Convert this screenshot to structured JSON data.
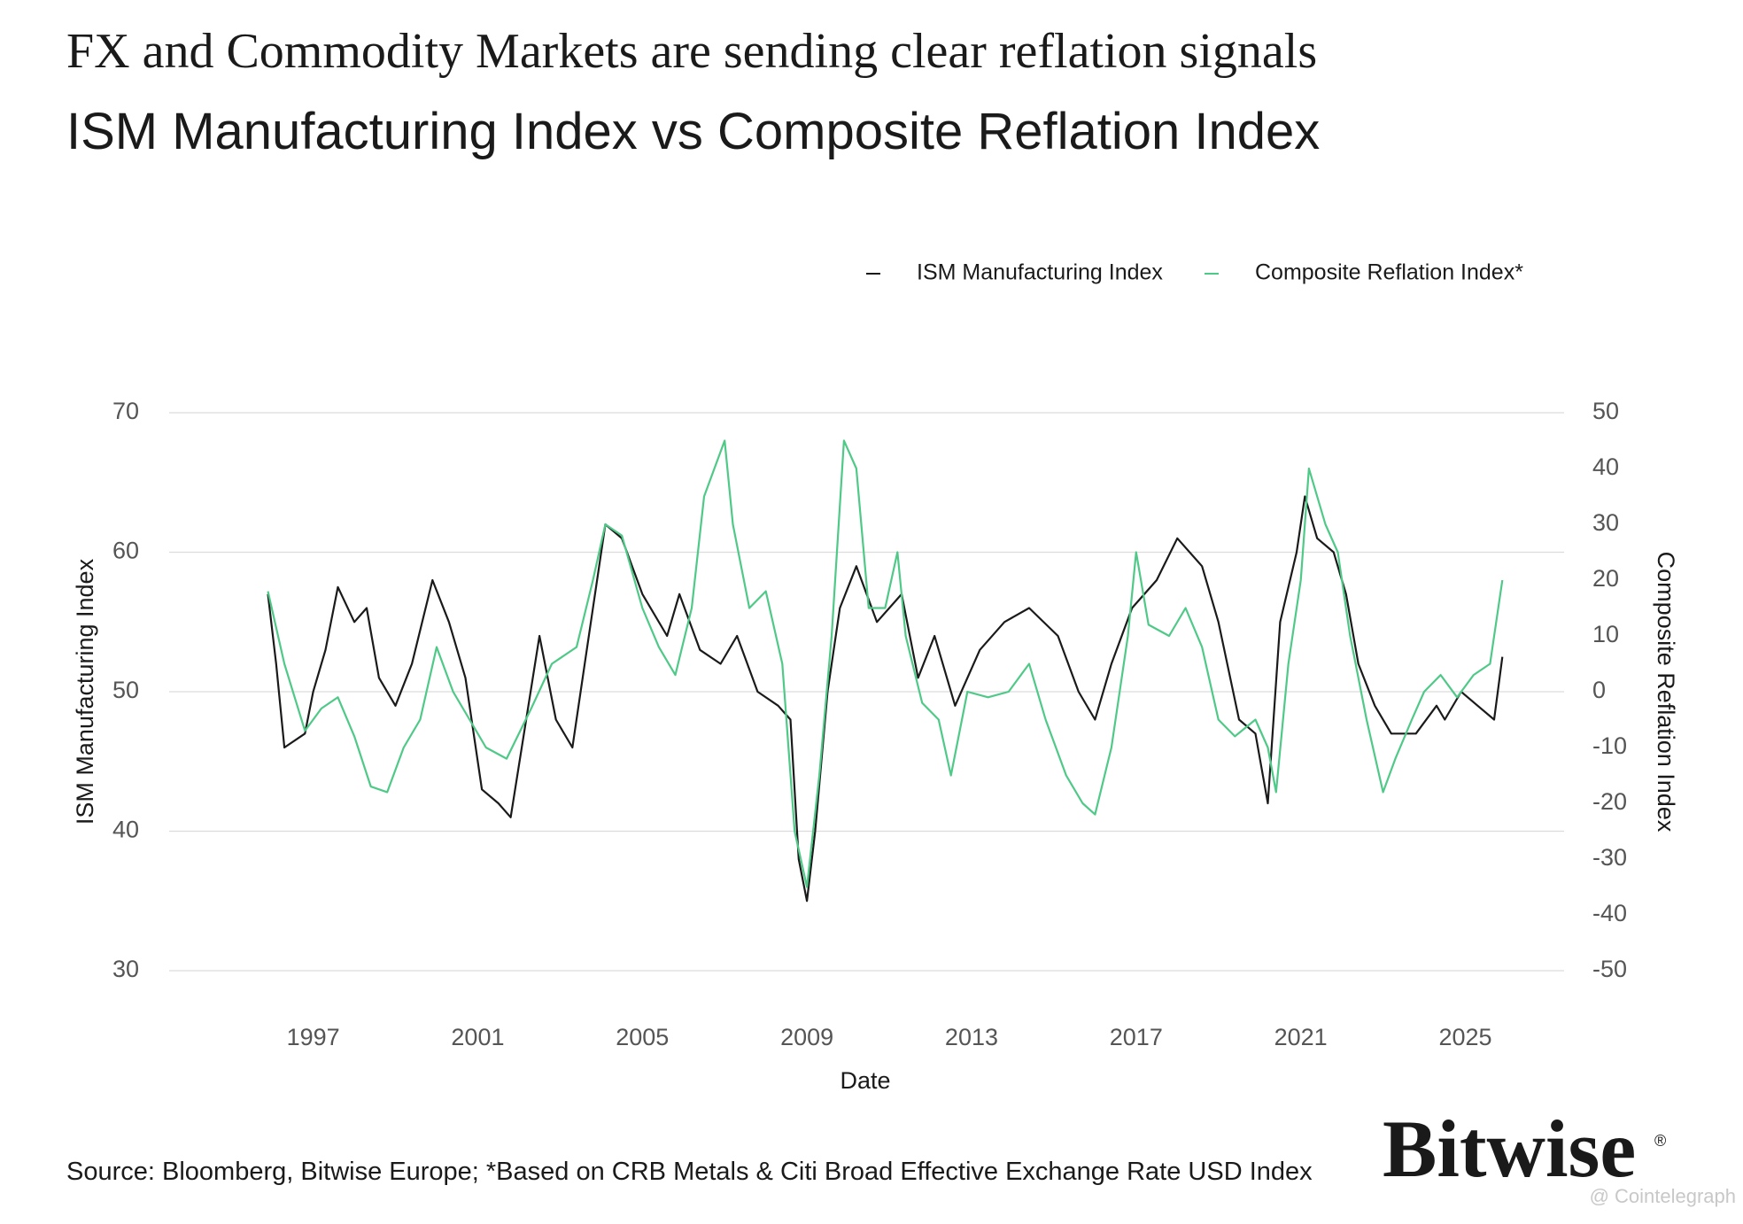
{
  "chart_data": {
    "type": "line",
    "title": "FX and Commodity Markets are sending clear reflation signals",
    "subtitle": "ISM Manufacturing Index vs Composite Reflation Index",
    "x_label": "Date",
    "y_label": "ISM Manufacturing Index",
    "y2_label": "Composite Reflation Index",
    "source": "Source: Bloomberg, Bitwise Europe; *Based on CRB Metals & Citi Broad Effective Exchange Rate USD Index",
    "logo": "Bitwise",
    "logo_mark": "®",
    "watermark": "@ Cointelegraph",
    "xlim": [
      1993.5,
      2027.4
    ],
    "xticks": [
      1997,
      2001,
      2005,
      2009,
      2013,
      2017,
      2021,
      2025
    ],
    "ylim": [
      30,
      70
    ],
    "yticks": [
      30,
      40,
      50,
      60,
      70
    ],
    "y2lim": [
      -50,
      50
    ],
    "y2ticks": [
      -50,
      -40,
      -30,
      -20,
      -10,
      0,
      10,
      20,
      30,
      40,
      50
    ],
    "grid": true,
    "legend": "top-right",
    "series": [
      {
        "name": "ISM Manufacturing Index",
        "color": "#1a1a1a",
        "x": [
          1995.9,
          1996.1,
          1996.3,
          1996.8,
          1997.0,
          1997.3,
          1997.6,
          1998.0,
          1998.3,
          1998.6,
          1999.0,
          1999.4,
          1999.9,
          2000.3,
          2000.7,
          2001.1,
          2001.5,
          2001.8,
          2002.5,
          2002.9,
          2003.3,
          2003.6,
          2003.8,
          2004.1,
          2004.5,
          2005.0,
          2005.6,
          2005.9,
          2006.4,
          2006.9,
          2007.3,
          2007.8,
          2008.3,
          2008.6,
          2008.8,
          2009.0,
          2009.2,
          2009.5,
          2009.8,
          2010.2,
          2010.7,
          2011.3,
          2011.7,
          2012.1,
          2012.6,
          2013.2,
          2013.8,
          2014.4,
          2015.1,
          2015.6,
          2016.0,
          2016.4,
          2016.9,
          2017.5,
          2018.0,
          2018.6,
          2019.0,
          2019.5,
          2019.9,
          2020.2,
          2020.5,
          2020.9,
          2021.1,
          2021.4,
          2021.8,
          2022.1,
          2022.4,
          2022.8,
          2023.2,
          2023.8,
          2024.3,
          2024.5,
          2024.9,
          2025.3,
          2025.7,
          2025.9
        ],
        "values": [
          57,
          52,
          46,
          47,
          50,
          53,
          57.5,
          55,
          56,
          51,
          49,
          52,
          58,
          55,
          51,
          43,
          42,
          41,
          54,
          48,
          46,
          52,
          56,
          62,
          61,
          57,
          54,
          57,
          53,
          52,
          54,
          50,
          49,
          48,
          38,
          35,
          40,
          50,
          56,
          59,
          55,
          57,
          51,
          54,
          49,
          53,
          55,
          56,
          54,
          50,
          48,
          52,
          56,
          58,
          61,
          59,
          55,
          48,
          47,
          42,
          55,
          60,
          64,
          61,
          60,
          57,
          52,
          49,
          47,
          47,
          49,
          48,
          50,
          49,
          48,
          52.5
        ]
      },
      {
        "name": "Composite Reflation Index*",
        "color": "#4fc987",
        "axis": "y2",
        "x": [
          1995.9,
          1996.3,
          1996.8,
          1997.2,
          1997.6,
          1998.0,
          1998.4,
          1998.8,
          1999.2,
          1999.6,
          2000.0,
          2000.4,
          2000.8,
          2001.2,
          2001.7,
          2002.3,
          2002.8,
          2003.4,
          2003.8,
          2004.1,
          2004.5,
          2005.0,
          2005.4,
          2005.8,
          2006.2,
          2006.5,
          2007.0,
          2007.2,
          2007.6,
          2008.0,
          2008.4,
          2008.7,
          2009.0,
          2009.3,
          2009.6,
          2009.9,
          2010.2,
          2010.5,
          2010.9,
          2011.2,
          2011.4,
          2011.8,
          2012.2,
          2012.5,
          2012.9,
          2013.4,
          2013.9,
          2014.4,
          2014.8,
          2015.3,
          2015.7,
          2016.0,
          2016.4,
          2016.8,
          2017.0,
          2017.3,
          2017.8,
          2018.2,
          2018.6,
          2019.0,
          2019.4,
          2019.9,
          2020.2,
          2020.4,
          2020.7,
          2021.0,
          2021.2,
          2021.6,
          2021.9,
          2022.2,
          2022.6,
          2023.0,
          2023.3,
          2023.7,
          2024.0,
          2024.4,
          2024.8,
          2025.2,
          2025.6,
          2025.9
        ],
        "values": [
          18,
          5,
          -7,
          -3,
          -1,
          -8,
          -17,
          -18,
          -10,
          -5,
          8,
          0,
          -5,
          -10,
          -12,
          -3,
          5,
          8,
          20,
          30,
          28,
          15,
          8,
          3,
          15,
          35,
          45,
          30,
          15,
          18,
          5,
          -25,
          -35,
          -15,
          10,
          45,
          40,
          15,
          15,
          25,
          10,
          -2,
          -5,
          -15,
          0,
          -1,
          0,
          5,
          -5,
          -15,
          -20,
          -22,
          -10,
          10,
          25,
          12,
          10,
          15,
          8,
          -5,
          -8,
          -5,
          -10,
          -18,
          5,
          20,
          40,
          30,
          25,
          10,
          -5,
          -18,
          -12,
          -5,
          0,
          3,
          -1,
          3,
          5,
          20
        ]
      }
    ]
  }
}
